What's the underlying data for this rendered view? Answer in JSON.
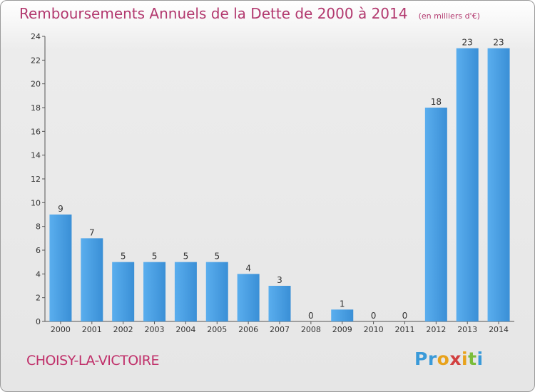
{
  "header": {
    "title": "Remboursements Annuels de la Dette de 2000 à 2014",
    "subtitle": "(en milliers d'€)"
  },
  "footer": {
    "commune": "CHOISY-LA-VICTOIRE",
    "brand_letters": [
      {
        "ch": "P",
        "color": "#3a9ad9"
      },
      {
        "ch": "r",
        "color": "#3a9ad9"
      },
      {
        "ch": "o",
        "color": "#e8a21c"
      },
      {
        "ch": "x",
        "color": "#d23f3f"
      },
      {
        "ch": "i",
        "color": "#e8a21c"
      },
      {
        "ch": "t",
        "color": "#7bbd3b"
      },
      {
        "ch": "i",
        "color": "#3a9ad9"
      }
    ]
  },
  "chart_data": {
    "type": "bar",
    "categories": [
      "2000",
      "2001",
      "2002",
      "2003",
      "2004",
      "2005",
      "2006",
      "2007",
      "2008",
      "2009",
      "2010",
      "2011",
      "2012",
      "2013",
      "2014"
    ],
    "values": [
      9,
      7,
      5,
      5,
      5,
      5,
      4,
      3,
      0,
      1,
      0,
      0,
      18,
      23,
      23
    ],
    "ylim": [
      0,
      24
    ],
    "yticks": [
      0,
      2,
      4,
      6,
      8,
      10,
      12,
      14,
      16,
      18,
      20,
      22,
      24
    ],
    "grid": false,
    "bar_color": "#3a8fd6",
    "bar_color_light": "#5aaeee"
  }
}
